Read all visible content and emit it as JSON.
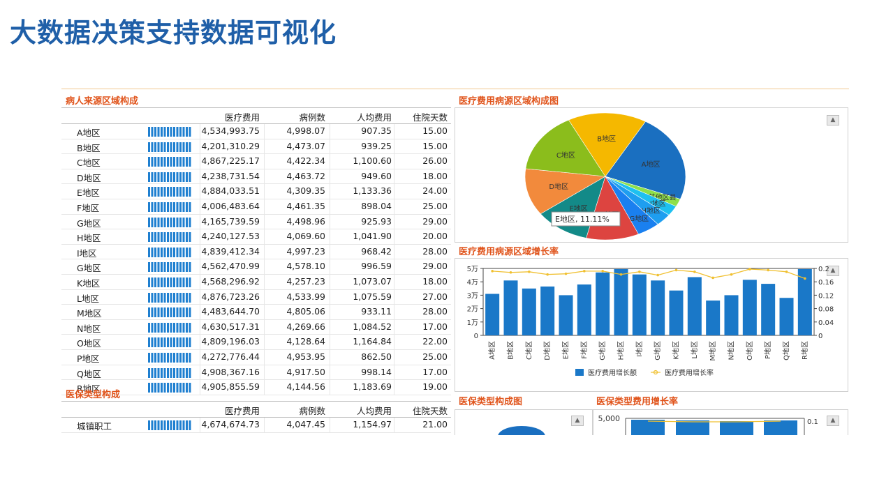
{
  "page_title": "大数据决策支持数据可视化",
  "region_table": {
    "title": "病人来源区域构成",
    "headers": [
      "医疗费用",
      "病例数",
      "人均费用",
      "住院天数"
    ],
    "rows": [
      {
        "name": "A地区",
        "cost": "4,534,993.75",
        "cases": "4,998.07",
        "avg": "907.35",
        "days": "15.00"
      },
      {
        "name": "B地区",
        "cost": "4,201,310.29",
        "cases": "4,473.07",
        "avg": "939.25",
        "days": "15.00"
      },
      {
        "name": "C地区",
        "cost": "4,867,225.17",
        "cases": "4,422.34",
        "avg": "1,100.60",
        "days": "26.00"
      },
      {
        "name": "D地区",
        "cost": "4,238,731.54",
        "cases": "4,463.72",
        "avg": "949.60",
        "days": "18.00"
      },
      {
        "name": "E地区",
        "cost": "4,884,033.51",
        "cases": "4,309.35",
        "avg": "1,133.36",
        "days": "24.00"
      },
      {
        "name": "F地区",
        "cost": "4,006,483.64",
        "cases": "4,461.35",
        "avg": "898.04",
        "days": "25.00"
      },
      {
        "name": "G地区",
        "cost": "4,165,739.59",
        "cases": "4,498.96",
        "avg": "925.93",
        "days": "29.00"
      },
      {
        "name": "H地区",
        "cost": "4,240,127.53",
        "cases": "4,069.60",
        "avg": "1,041.90",
        "days": "20.00"
      },
      {
        "name": "I地区",
        "cost": "4,839,412.34",
        "cases": "4,997.23",
        "avg": "968.42",
        "days": "28.00"
      },
      {
        "name": "G地区",
        "cost": "4,562,470.99",
        "cases": "4,578.10",
        "avg": "996.59",
        "days": "29.00"
      },
      {
        "name": "K地区",
        "cost": "4,568,296.92",
        "cases": "4,257.23",
        "avg": "1,073.07",
        "days": "18.00"
      },
      {
        "name": "L地区",
        "cost": "4,876,723.26",
        "cases": "4,533.99",
        "avg": "1,075.59",
        "days": "27.00"
      },
      {
        "name": "M地区",
        "cost": "4,483,644.70",
        "cases": "4,805.06",
        "avg": "933.11",
        "days": "28.00"
      },
      {
        "name": "N地区",
        "cost": "4,630,517.31",
        "cases": "4,269.66",
        "avg": "1,084.52",
        "days": "17.00"
      },
      {
        "name": "O地区",
        "cost": "4,809,196.03",
        "cases": "4,128.64",
        "avg": "1,164.84",
        "days": "22.00"
      },
      {
        "name": "P地区",
        "cost": "4,272,776.44",
        "cases": "4,953.95",
        "avg": "862.50",
        "days": "25.00"
      },
      {
        "name": "Q地区",
        "cost": "4,908,367.16",
        "cases": "4,917.50",
        "avg": "998.14",
        "days": "17.00"
      },
      {
        "name": "R地区",
        "cost": "4,905,855.59",
        "cases": "4,144.56",
        "avg": "1,183.69",
        "days": "19.00"
      }
    ]
  },
  "insurance_table": {
    "title": "医保类型构成",
    "headers": [
      "医疗费用",
      "病例数",
      "人均费用",
      "住院天数"
    ],
    "rows": [
      {
        "name": "城镇职工",
        "cost": "4,674,674.73",
        "cases": "4,047.45",
        "avg": "1,154.97",
        "days": "21.00"
      }
    ]
  },
  "pie_panel": {
    "title": "医疗费用病源区域构成图",
    "tooltip": "E地区, 11.11%"
  },
  "growth_panel": {
    "title": "医疗费用病源区域增长率"
  },
  "ins_pie_panel": {
    "title": "医保类型构成图"
  },
  "ins_growth_panel": {
    "title": "医保类型费用增长率",
    "y_top_label": "5,000",
    "y2_top_label": "0.1"
  },
  "chart_data": [
    {
      "type": "pie",
      "slices": [
        {
          "label": "A地区",
          "value": 22.5,
          "color": "#1a6fc0"
        },
        {
          "label": "其他区县",
          "value": 2.0,
          "color": "#8ee04a"
        },
        {
          "label": "I地区",
          "value": 2.6,
          "color": "#1ec0f0"
        },
        {
          "label": "H地区",
          "value": 3.2,
          "color": "#1e9ef0"
        },
        {
          "label": "G地区",
          "value": 4.6,
          "color": "#1a80f0"
        },
        {
          "label": "F地区",
          "value": 10.6,
          "color": "#dd4440"
        },
        {
          "label": "E地区",
          "value": 11.11,
          "color": "#138a88"
        },
        {
          "label": "D地区",
          "value": 12.0,
          "color": "#f28a3c"
        },
        {
          "label": "C地区",
          "value": 15.5,
          "color": "#8bbd1c"
        },
        {
          "label": "B地区",
          "value": 15.89,
          "color": "#f5b800"
        }
      ]
    },
    {
      "type": "bar",
      "categories": [
        "A地区",
        "B地区",
        "C地区",
        "D地区",
        "E地区",
        "F地区",
        "G地区",
        "H地区",
        "I地区",
        "G地区",
        "K地区",
        "L地区",
        "M地区",
        "N地区",
        "O地区",
        "P地区",
        "Q地区",
        "R地区"
      ],
      "series": [
        {
          "name": "医疗费用增长额",
          "type": "bar",
          "axis": "left",
          "color": "#1a78c8",
          "values": [
            31000,
            41000,
            35000,
            36500,
            30000,
            38000,
            47000,
            49500,
            45500,
            41000,
            33500,
            43500,
            26000,
            30000,
            41500,
            38500,
            28000,
            49500
          ]
        },
        {
          "name": "医疗费用增长率",
          "type": "line",
          "axis": "right",
          "color": "#f0c030",
          "values": [
            0.192,
            0.188,
            0.19,
            0.182,
            0.184,
            0.192,
            0.192,
            0.182,
            0.19,
            0.18,
            0.195,
            0.19,
            0.172,
            0.182,
            0.198,
            0.195,
            0.19,
            0.17
          ]
        }
      ],
      "y_ticks": [
        "0",
        "1万",
        "2万",
        "3万",
        "4万",
        "5万"
      ],
      "ylim": [
        0,
        50000
      ],
      "y2_ticks": [
        "0",
        "0.04",
        "0.08",
        "0.12",
        "0.16",
        "0.2"
      ],
      "y2lim": [
        0,
        0.2
      ],
      "legend_position": "bottom"
    }
  ]
}
